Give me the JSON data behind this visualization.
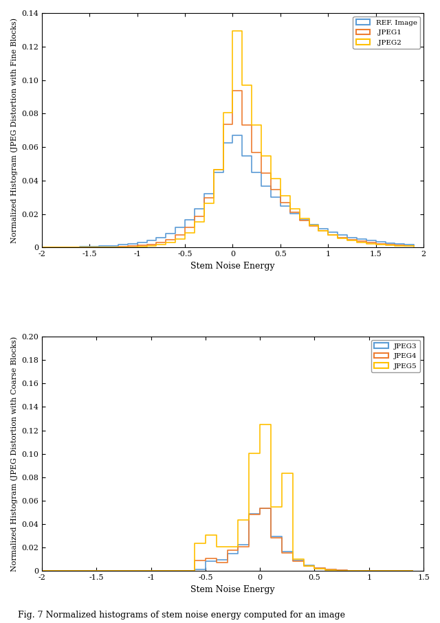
{
  "fig_width": 6.4,
  "fig_height": 9.07,
  "dpi": 100,
  "top_plot": {
    "xlabel": "Stem Noise Energy",
    "ylabel": "Normalized Histogram (JPEG Distortion with Fine Blocks)",
    "xlim": [
      -2,
      2
    ],
    "ylim": [
      0,
      0.14
    ],
    "yticks": [
      0,
      0.02,
      0.04,
      0.06,
      0.08,
      0.1,
      0.12,
      0.14
    ],
    "xticks": [
      -2,
      -1.5,
      -1,
      -0.5,
      0,
      0.5,
      1,
      1.5,
      2
    ],
    "legend_labels": [
      "REF. Image",
      ".JPEG1",
      ".JPEG2"
    ],
    "legend_colors": [
      "#5b9bd5",
      "#ed7d31",
      "#ffc000"
    ]
  },
  "bottom_plot": {
    "xlabel": "Stem Noise Energy",
    "ylabel": "Normalized Histogram (JPEG Distortion with Coarse Blocks)",
    "xlim": [
      -2,
      1.5
    ],
    "ylim": [
      0,
      0.2
    ],
    "yticks": [
      0,
      0.02,
      0.04,
      0.06,
      0.08,
      0.1,
      0.12,
      0.14,
      0.16,
      0.18,
      0.2
    ],
    "xticks": [
      -2,
      -1.5,
      -1,
      -0.5,
      0,
      0.5,
      1,
      1.5
    ],
    "legend_labels": [
      "JPEG3",
      "JPEG4",
      "JPEG5"
    ],
    "legend_colors": [
      "#5b9bd5",
      "#ed7d31",
      "#ffc000"
    ]
  },
  "caption": "Fig. 7 Normalized histograms of stem noise energy computed for an image"
}
